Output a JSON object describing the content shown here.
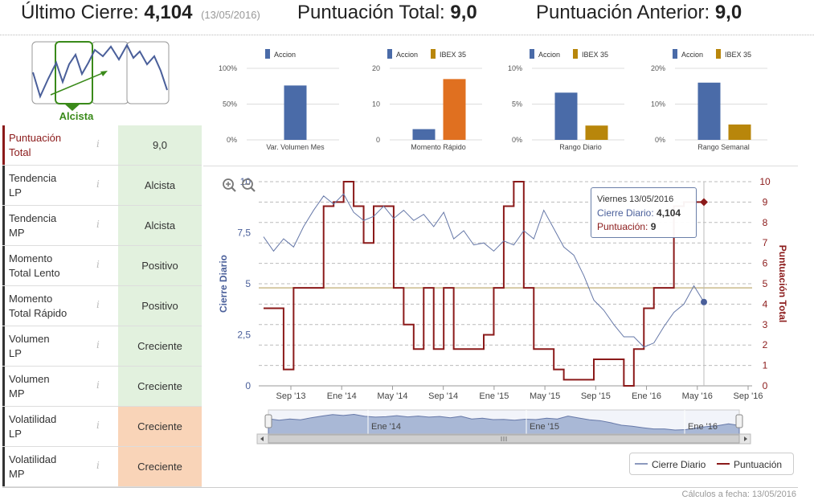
{
  "header": {
    "last_close_label": "Último Cierre:",
    "last_close_value": "4,104",
    "last_close_date": "(13/05/2016)",
    "total_score_label": "Puntuación Total:",
    "total_score_value": "9,0",
    "prev_score_label": "Puntuación Anterior:",
    "prev_score_value": "9,0"
  },
  "trend": {
    "label": "Alcista"
  },
  "indicators": [
    {
      "name_line1": "Puntuación",
      "name_line2": "Total",
      "info": "i",
      "value": "9,0",
      "status": "green"
    },
    {
      "name_line1": "Tendencia",
      "name_line2": "LP",
      "info": "i",
      "value": "Alcista",
      "status": "green"
    },
    {
      "name_line1": "Tendencia",
      "name_line2": "MP",
      "info": "i",
      "value": "Alcista",
      "status": "green"
    },
    {
      "name_line1": "Momento",
      "name_line2": "Total Lento",
      "info": "i",
      "value": "Positivo",
      "status": "green"
    },
    {
      "name_line1": "Momento",
      "name_line2": "Total Rápido",
      "info": "i",
      "value": "Positivo",
      "status": "green"
    },
    {
      "name_line1": "Volumen",
      "name_line2": "LP",
      "info": "i",
      "value": "Creciente",
      "status": "green"
    },
    {
      "name_line1": "Volumen",
      "name_line2": "MP",
      "info": "i",
      "value": "Creciente",
      "status": "green"
    },
    {
      "name_line1": "Volatilidad",
      "name_line2": "LP",
      "info": "i",
      "value": "Creciente",
      "status": "orange"
    },
    {
      "name_line1": "Volatilidad",
      "name_line2": "MP",
      "info": "i",
      "value": "Creciente",
      "status": "orange"
    }
  ],
  "colors": {
    "accion": "#4a6ba8",
    "ibex": "#b8860b",
    "momento_ibex": "#e07020",
    "price_line": "#6678a8",
    "score_line": "#8b1a1a",
    "threshold": "#c9b98a"
  },
  "chart_data": [
    {
      "type": "bar",
      "title": "Var. Volumen Mes",
      "legend": [
        "Accion"
      ],
      "yticks": [
        "100%",
        "50%",
        "0%"
      ],
      "ylim": [
        0,
        100
      ],
      "series": [
        {
          "name": "Accion",
          "values": [
            76
          ]
        }
      ]
    },
    {
      "type": "bar",
      "title": "Momento Rápido",
      "legend": [
        "Accion",
        "IBEX 35"
      ],
      "yticks": [
        "20",
        "10",
        "0"
      ],
      "ylim": [
        0,
        20
      ],
      "series": [
        {
          "name": "Accion",
          "values": [
            3
          ]
        },
        {
          "name": "IBEX 35",
          "values": [
            17
          ]
        }
      ]
    },
    {
      "type": "bar",
      "title": "Rango Diario",
      "legend": [
        "Accion",
        "IBEX 35"
      ],
      "yticks": [
        "10%",
        "5%",
        "0%"
      ],
      "ylim": [
        0,
        10
      ],
      "series": [
        {
          "name": "Accion",
          "values": [
            6.6
          ]
        },
        {
          "name": "IBEX 35",
          "values": [
            2
          ]
        }
      ]
    },
    {
      "type": "bar",
      "title": "Rango Semanal",
      "legend": [
        "Accion",
        "IBEX 35"
      ],
      "yticks": [
        "20%",
        "10%",
        "0%"
      ],
      "ylim": [
        0,
        20
      ],
      "series": [
        {
          "name": "Accion",
          "values": [
            16
          ]
        },
        {
          "name": "IBEX 35",
          "values": [
            4.3
          ]
        }
      ]
    },
    {
      "type": "line",
      "title": "",
      "ylabel_left": "Cierre Diario",
      "ylabel_right": "Puntuación Total",
      "yticks_left": [
        "10",
        "7,5",
        "5",
        "2,5",
        "0"
      ],
      "yticks_right": [
        "10",
        "9",
        "8",
        "7",
        "6",
        "5",
        "4",
        "3",
        "2",
        "1",
        "0"
      ],
      "xticks": [
        "Sep '13",
        "Ene '14",
        "May '14",
        "Sep '14",
        "Ene '15",
        "May '15",
        "Sep '15",
        "Ene '16",
        "May '16",
        "Sep '16"
      ],
      "navigator_ticks": [
        "Ene '14",
        "Ene '15",
        "Ene '16"
      ],
      "threshold_right": 4.8,
      "series": [
        {
          "name": "Cierre Diario",
          "values": [
            7.3,
            6.6,
            7.2,
            6.8,
            7.8,
            8.6,
            9.3,
            8.9,
            9.4,
            8.5,
            8.1,
            8.3,
            8.8,
            8.2,
            8.6,
            8.1,
            8.4,
            7.8,
            8.5,
            7.2,
            7.6,
            6.9,
            7.0,
            6.6,
            7.1,
            6.9,
            7.6,
            7.2,
            8.6,
            7.7,
            6.8,
            6.4,
            5.4,
            4.2,
            3.7,
            3.0,
            2.4,
            2.4,
            1.9,
            2.1,
            2.9,
            3.6,
            4.0,
            4.9,
            4.104
          ]
        },
        {
          "name": "Puntuación",
          "values": [
            3.8,
            3.8,
            0.8,
            4.8,
            4.8,
            4.8,
            8.8,
            9.0,
            10.0,
            8.8,
            7.0,
            8.8,
            8.8,
            4.8,
            3.0,
            1.8,
            4.8,
            1.8,
            4.8,
            1.8,
            1.8,
            1.8,
            2.5,
            4.8,
            8.8,
            10.0,
            4.8,
            1.8,
            1.8,
            0.8,
            0.3,
            0.3,
            0.3,
            1.3,
            1.3,
            1.3,
            0.0,
            1.8,
            3.8,
            4.8,
            4.8,
            8.8,
            9.0,
            9.0,
            9.0
          ]
        }
      ],
      "tooltip": {
        "date": "Viernes 13/05/2016",
        "close_label": "Cierre Diario:",
        "close_value": "4,104",
        "score_label": "Puntuación:",
        "score_value": "9"
      }
    }
  ],
  "legend": {
    "price": "Cierre Diario",
    "score": "Puntuación"
  },
  "footer": "Cálculos a fecha: 13/05/2016"
}
